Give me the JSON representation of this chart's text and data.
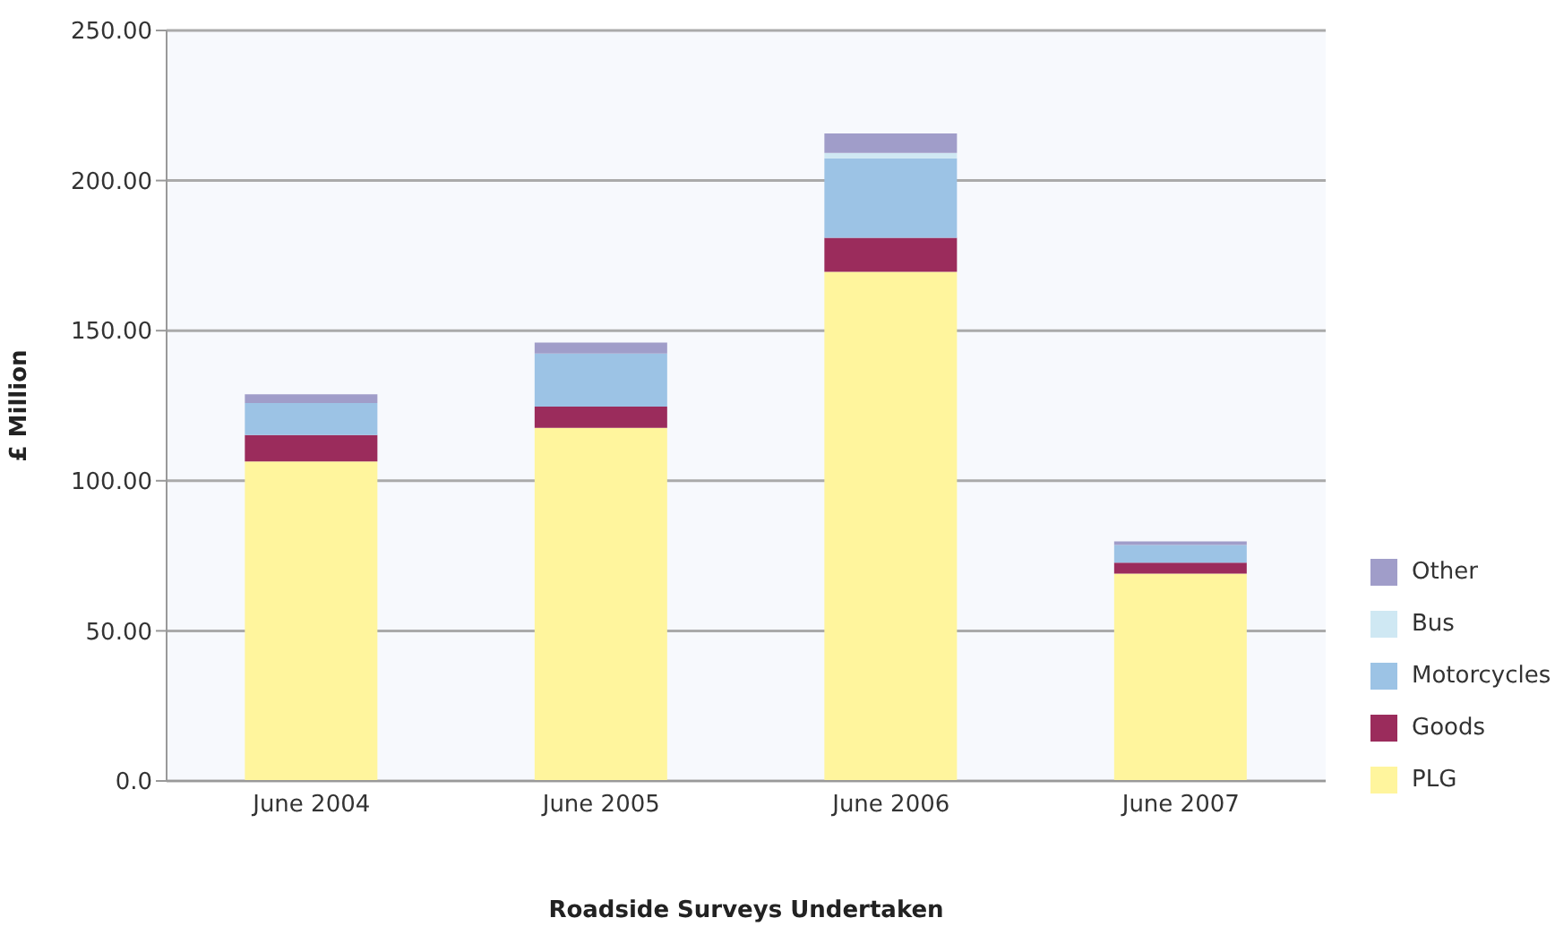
{
  "chart_data": {
    "type": "bar",
    "stacked": true,
    "xlabel": "Roadside Surveys Undertaken",
    "ylabel": "£ Million",
    "categories": [
      "June 2004",
      "June 2005",
      "June 2006",
      "June 2007"
    ],
    "series": [
      {
        "name": "PLG",
        "color": "#fff59d",
        "values": [
          106.4,
          117.6,
          169.6,
          69.1
        ]
      },
      {
        "name": "Goods",
        "color": "#9b2c5c",
        "values": [
          8.8,
          7.1,
          11.3,
          3.6
        ]
      },
      {
        "name": "Motorcycles",
        "color": "#9cc3e5",
        "values": [
          10.7,
          17.7,
          26.5,
          5.9
        ]
      },
      {
        "name": "Bus",
        "color": "#cfe8f3",
        "values": [
          null,
          null,
          1.8,
          null
        ]
      },
      {
        "name": "Other",
        "color": "#a09dc9",
        "values": [
          2.9,
          3.6,
          6.5,
          1.2
        ]
      }
    ],
    "ylim": [
      0,
      250
    ],
    "yticks": [
      {
        "value": 0,
        "label": "0.0"
      },
      {
        "value": 50,
        "label": "50.00"
      },
      {
        "value": 100,
        "label": "100.00"
      },
      {
        "value": 150,
        "label": "150.00"
      },
      {
        "value": 200,
        "label": "200.00"
      },
      {
        "value": 250,
        "label": "250.00"
      }
    ],
    "grid": "y",
    "legend": "right"
  }
}
